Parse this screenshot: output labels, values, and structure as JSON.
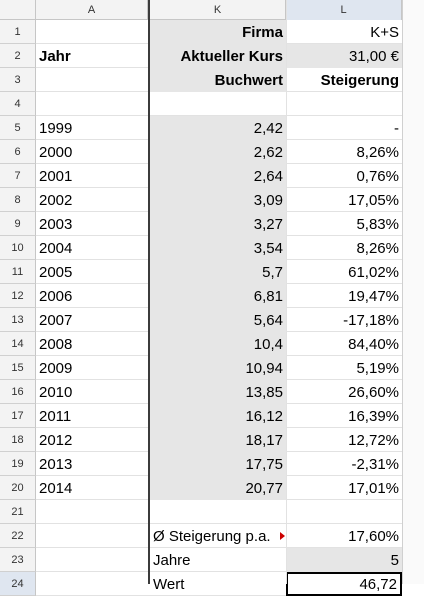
{
  "columns": [
    {
      "id": "col-a",
      "label": "A",
      "selected": false
    },
    {
      "id": "col-k",
      "label": "K",
      "selected": false
    },
    {
      "id": "col-l",
      "label": "L",
      "selected": true
    }
  ],
  "rows": [
    {
      "n": "1",
      "a": "",
      "k": "Firma",
      "l": "K+S"
    },
    {
      "n": "2",
      "a": "Jahr",
      "k": "Aktueller Kurs",
      "l": "31,00 €"
    },
    {
      "n": "3",
      "a": "",
      "k": "Buchwert",
      "l": "Steigerung"
    },
    {
      "n": "4",
      "a": "",
      "k": "",
      "l": ""
    },
    {
      "n": "5",
      "a": "1999",
      "k": "2,42",
      "l": "-"
    },
    {
      "n": "6",
      "a": "2000",
      "k": "2,62",
      "l": "8,26%"
    },
    {
      "n": "7",
      "a": "2001",
      "k": "2,64",
      "l": "0,76%"
    },
    {
      "n": "8",
      "a": "2002",
      "k": "3,09",
      "l": "17,05%"
    },
    {
      "n": "9",
      "a": "2003",
      "k": "3,27",
      "l": "5,83%"
    },
    {
      "n": "10",
      "a": "2004",
      "k": "3,54",
      "l": "8,26%"
    },
    {
      "n": "11",
      "a": "2005",
      "k": "5,7",
      "l": "61,02%"
    },
    {
      "n": "12",
      "a": "2006",
      "k": "6,81",
      "l": "19,47%"
    },
    {
      "n": "13",
      "a": "2007",
      "k": "5,64",
      "l": "-17,18%"
    },
    {
      "n": "14",
      "a": "2008",
      "k": "10,4",
      "l": "84,40%"
    },
    {
      "n": "15",
      "a": "2009",
      "k": "10,94",
      "l": "5,19%"
    },
    {
      "n": "16",
      "a": "2010",
      "k": "13,85",
      "l": "26,60%"
    },
    {
      "n": "17",
      "a": "2011",
      "k": "16,12",
      "l": "16,39%"
    },
    {
      "n": "18",
      "a": "2012",
      "k": "18,17",
      "l": "12,72%"
    },
    {
      "n": "19",
      "a": "2013",
      "k": "17,75",
      "l": "-2,31%"
    },
    {
      "n": "20",
      "a": "2014",
      "k": "20,77",
      "l": "17,01%"
    },
    {
      "n": "21",
      "a": "",
      "k": "",
      "l": ""
    },
    {
      "n": "22",
      "a": "",
      "k": "Ø Steigerung p.a.",
      "l": "17,60%"
    },
    {
      "n": "23",
      "a": "",
      "k": "Jahre",
      "l": "5"
    },
    {
      "n": "24",
      "a": "",
      "k": "Wert",
      "l": "46,72"
    }
  ],
  "active_cell": "L24",
  "colors": {
    "shade": "#e6e6e6",
    "selection_header": "#dfe6f0",
    "comment_marker": "#cc0000"
  }
}
